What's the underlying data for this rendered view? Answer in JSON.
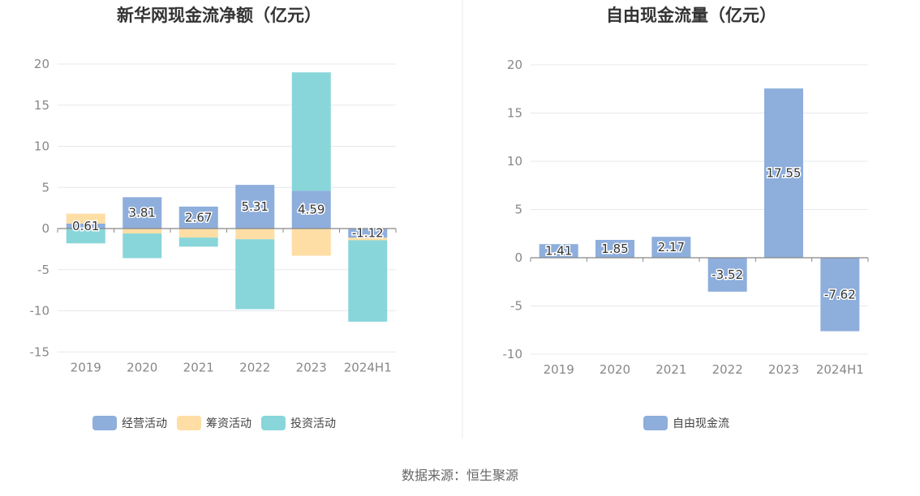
{
  "colors": {
    "operating": "#8eaedc",
    "financing": "#fedea4",
    "investing": "#88d6d9",
    "free_cash_flow": "#8eaedc",
    "grid": "#e6e8ee",
    "axis": "#888888",
    "divider": "#e8e8e8"
  },
  "chart_data": [
    {
      "type": "bar",
      "stacked": true,
      "title": "新华网现金流净额（亿元）",
      "categories": [
        "2019",
        "2020",
        "2021",
        "2022",
        "2023",
        "2024H1"
      ],
      "ylim": [
        -15,
        20
      ],
      "yticks": [
        "20",
        "15",
        "10",
        "5",
        "0",
        "-5",
        "-10",
        "-15"
      ],
      "grid": true,
      "legend_position": "bottom",
      "series": [
        {
          "name": "经营活动",
          "color_key": "operating",
          "values": [
            0.61,
            3.81,
            2.67,
            5.31,
            4.59,
            -1.12
          ],
          "labels": [
            "0.61",
            "3.81",
            "2.67",
            "5.31",
            "4.59",
            "-1.12"
          ]
        },
        {
          "name": "筹资活动",
          "color_key": "financing",
          "values": [
            1.2,
            -0.6,
            -1.1,
            -1.3,
            -3.3,
            -0.3
          ]
        },
        {
          "name": "投资活动",
          "color_key": "investing",
          "values": [
            -1.8,
            -3.0,
            -1.1,
            -8.5,
            14.4,
            -9.9
          ]
        }
      ]
    },
    {
      "type": "bar",
      "title": "自由现金流量（亿元）",
      "categories": [
        "2019",
        "2020",
        "2021",
        "2022",
        "2023",
        "2024H1"
      ],
      "ylim": [
        -10,
        20
      ],
      "yticks": [
        "20",
        "15",
        "10",
        "5",
        "0",
        "-5",
        "-10"
      ],
      "grid": true,
      "legend_position": "bottom",
      "series": [
        {
          "name": "自由现金流",
          "color_key": "free_cash_flow",
          "values": [
            1.41,
            1.85,
            2.17,
            -3.52,
            17.55,
            -7.62
          ],
          "labels": [
            "1.41",
            "1.85",
            "2.17",
            "-3.52",
            "17.55",
            "-7.62"
          ]
        }
      ]
    }
  ],
  "footer": {
    "source": "数据来源：恒生聚源"
  }
}
